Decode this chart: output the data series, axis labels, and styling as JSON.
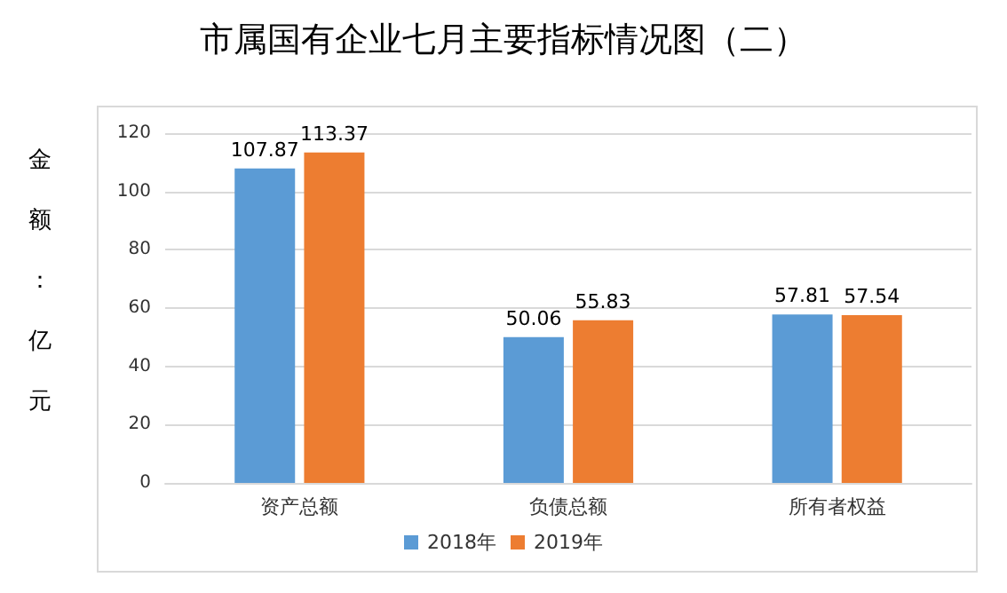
{
  "chart_data": {
    "type": "bar",
    "title": "市属国有企业七月主要指标情况图（二）",
    "ylabel": "金额：亿元",
    "categories": [
      "资产总额",
      "负债总额",
      "所有者权益"
    ],
    "series": [
      {
        "name": "2018年",
        "color": "#5b9bd5",
        "values": [
          107.87,
          50.06,
          57.81
        ]
      },
      {
        "name": "2019年",
        "color": "#ed7d31",
        "values": [
          113.37,
          55.83,
          57.54
        ]
      }
    ],
    "ylim": [
      0,
      120
    ],
    "yticks": [
      0,
      20,
      40,
      60,
      80,
      100,
      120
    ],
    "grid": "y",
    "legend": "bottom",
    "data_labels": true
  }
}
